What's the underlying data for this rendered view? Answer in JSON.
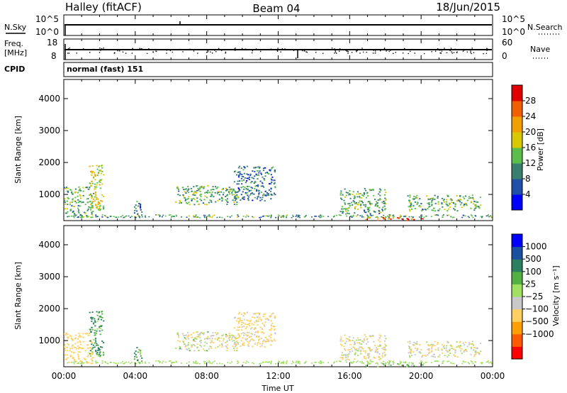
{
  "header": {
    "left": "Halley (fitACF)",
    "center": "Beam 04",
    "right": "18/Jun/2015"
  },
  "side_labels": {
    "nsky": "N.Sky",
    "nsearch": "N.Search",
    "freq_line1": "Freq.",
    "freq_line2": "[MHz]",
    "nave": "Nave",
    "cpid": "CPID",
    "cpid_value": "normal (fast) 151"
  },
  "colors": {
    "power_scale": [
      "#0000ff",
      "#1f4fa8",
      "#3a7f6e",
      "#5abf4a",
      "#d8c800",
      "#f0a000",
      "#f06000",
      "#e00000"
    ],
    "velocity_scale": [
      "#ff0000",
      "#ff5a00",
      "#ffa000",
      "#ffd060",
      "#c8c8c8",
      "#a0e060",
      "#50b040",
      "#2a8060",
      "#1a50a0",
      "#0000ff"
    ]
  },
  "chart_data": [
    {
      "type": "line",
      "panel": "N.Sky / N.Search",
      "yticks_left": [
        "10^5",
        "10^0"
      ],
      "yticks_right": [
        "10^5",
        "10^0"
      ],
      "xlim": [
        0,
        24
      ]
    },
    {
      "type": "line",
      "panel": "Freq / Nave",
      "yticks_left": [
        "18",
        "8"
      ],
      "yticks_right": [
        "60",
        "0"
      ],
      "xlim": [
        0,
        24
      ]
    },
    {
      "type": "heatmap",
      "panel": "power",
      "ylabel": "Slant Range [km]",
      "ylim": [
        180,
        4600
      ],
      "yticks": [
        1000,
        2000,
        3000,
        4000
      ],
      "xlim": [
        0,
        24
      ],
      "colorbar_label": "Power [dB]",
      "colorbar_ticks": [
        "4",
        "8",
        "12",
        "16",
        "20",
        "24",
        "28"
      ],
      "colorbar_range": [
        0,
        30
      ],
      "echo_regions": [
        {
          "t0": 0.0,
          "t1": 1.6,
          "r0": 300,
          "r1": 1250,
          "value": 12
        },
        {
          "t0": 1.4,
          "t1": 2.2,
          "r0": 500,
          "r1": 2000,
          "value": 16
        },
        {
          "t0": 3.9,
          "t1": 4.4,
          "r0": 300,
          "r1": 800,
          "value": 8
        },
        {
          "t0": 6.2,
          "t1": 9.8,
          "r0": 700,
          "r1": 1300,
          "value": 12
        },
        {
          "t0": 9.5,
          "t1": 11.8,
          "r0": 800,
          "r1": 1900,
          "value": 8
        },
        {
          "t0": 15.4,
          "t1": 18.0,
          "r0": 400,
          "r1": 1200,
          "value": 12
        },
        {
          "t0": 16.8,
          "t1": 20.2,
          "r0": 200,
          "r1": 320,
          "value": 24
        },
        {
          "t0": 19.2,
          "t1": 23.3,
          "r0": 500,
          "r1": 1000,
          "value": 12
        }
      ]
    },
    {
      "type": "heatmap",
      "panel": "velocity",
      "xlabel": "Time UT",
      "ylabel": "Slant Range [km]",
      "ylim": [
        180,
        4600
      ],
      "yticks": [
        1000,
        2000,
        3000,
        4000
      ],
      "xlim": [
        0,
        24
      ],
      "xticks": [
        "00:00",
        "04:00",
        "08:00",
        "12:00",
        "16:00",
        "20:00",
        "00:00"
      ],
      "colorbar_label": "Velocity [m s⁻¹]",
      "colorbar_ticks": [
        "1000",
        "500",
        "100",
        "25",
        "−25",
        "−100",
        "−500",
        "−1000"
      ],
      "echo_regions": [
        {
          "t0": 0.0,
          "t1": 1.6,
          "r0": 300,
          "r1": 1250,
          "value": -300
        },
        {
          "t0": 1.4,
          "t1": 2.2,
          "r0": 500,
          "r1": 2000,
          "value": 100
        },
        {
          "t0": 3.9,
          "t1": 4.4,
          "r0": 300,
          "r1": 800,
          "value": 100
        },
        {
          "t0": 6.2,
          "t1": 9.8,
          "r0": 700,
          "r1": 1300,
          "value": -60
        },
        {
          "t0": 9.5,
          "t1": 11.8,
          "r0": 800,
          "r1": 1900,
          "value": -150
        },
        {
          "t0": 15.4,
          "t1": 18.0,
          "r0": 400,
          "r1": 1200,
          "value": -80
        },
        {
          "t0": 16.8,
          "t1": 20.2,
          "r0": 200,
          "r1": 320,
          "value": 0
        },
        {
          "t0": 19.2,
          "t1": 23.3,
          "r0": 500,
          "r1": 1000,
          "value": -80
        }
      ]
    }
  ]
}
